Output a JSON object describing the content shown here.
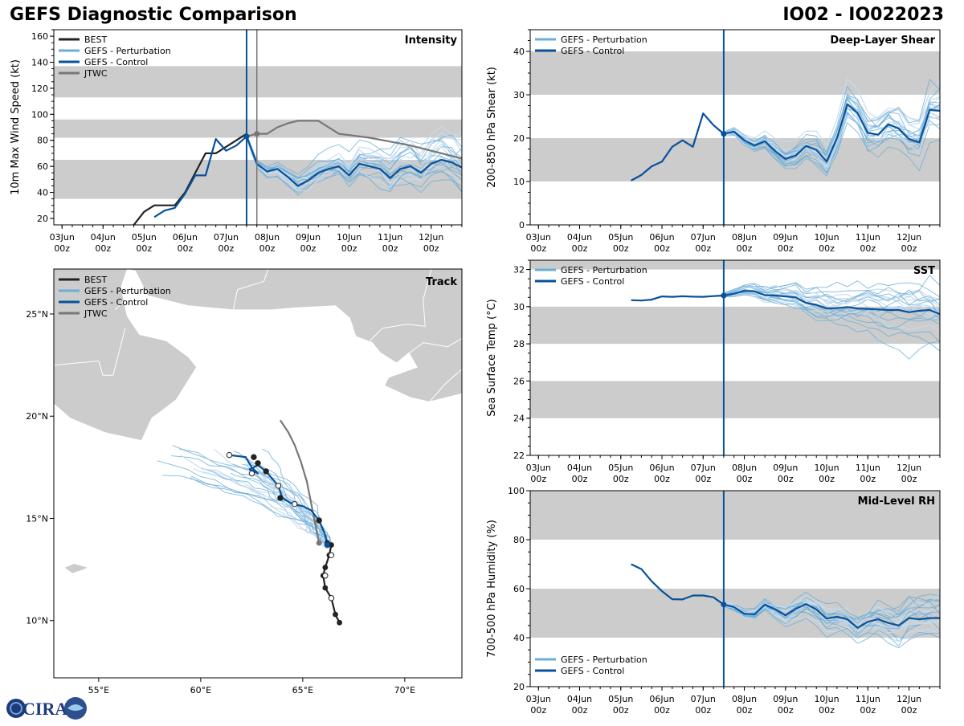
{
  "header": {
    "title_left": "GEFS Diagnostic Comparison",
    "title_right": "IO02 - IO022023"
  },
  "logo": {
    "text": "CIRA"
  },
  "colors": {
    "best": "#222222",
    "pert": "#6baed6",
    "pert_light": "#c6dbef",
    "control": "#08519c",
    "jtwc": "#777777",
    "band": "#cccccc",
    "land": "#cccccc"
  },
  "time_axis": {
    "labels": [
      [
        "03Jun",
        "00z"
      ],
      [
        "04Jun",
        "00z"
      ],
      [
        "05Jun",
        "00z"
      ],
      [
        "06Jun",
        "00z"
      ],
      [
        "07Jun",
        "00z"
      ],
      [
        "08Jun",
        "00z"
      ],
      [
        "09Jun",
        "00z"
      ],
      [
        "10Jun",
        "00z"
      ],
      [
        "11Jun",
        "00z"
      ],
      [
        "12Jun",
        "00z"
      ]
    ],
    "tick_days": [
      0,
      1,
      2,
      3,
      4,
      5,
      6,
      7,
      8,
      9
    ],
    "range": [
      -0.2,
      9.75
    ],
    "init_day": 4.5,
    "jtwc_day": 4.75
  },
  "chart_data": [
    {
      "id": "intensity",
      "type": "line",
      "title": "Intensity",
      "ylabel": "10m Max Wind Speed (kt)",
      "ylim": [
        15,
        165
      ],
      "yticks": [
        20,
        40,
        60,
        80,
        100,
        120,
        140,
        160
      ],
      "bands": [
        [
          35,
          65
        ],
        [
          82,
          96
        ],
        [
          113,
          137
        ]
      ],
      "legend": [
        "BEST",
        "GEFS - Perturbation",
        "GEFS - Control",
        "JTWC"
      ],
      "series": [
        {
          "name": "BEST",
          "x": [
            1.75,
            2.0,
            2.25,
            2.5,
            2.75,
            3.0,
            3.25,
            3.5,
            3.75,
            4.0,
            4.25,
            4.5
          ],
          "y": [
            15,
            25,
            30,
            30,
            30,
            40,
            55,
            70,
            70,
            75,
            80,
            85
          ]
        },
        {
          "name": "GEFS - Control",
          "x": [
            2.25,
            2.5,
            2.75,
            3.0,
            3.25,
            3.5,
            3.75,
            4.0,
            4.25,
            4.5,
            4.75,
            5.0,
            5.25,
            5.5,
            5.75,
            6.0,
            6.25,
            6.5,
            6.75,
            7.0,
            7.25,
            7.5,
            7.75,
            8.0,
            8.25,
            8.5,
            8.75,
            9.0,
            9.25,
            9.5,
            9.75
          ],
          "y": [
            21,
            26,
            28,
            39,
            53,
            53,
            81,
            72,
            76,
            83,
            62,
            56,
            58,
            52,
            45,
            49,
            55,
            58,
            60,
            53,
            62,
            60,
            58,
            51,
            58,
            60,
            55,
            62,
            65,
            63,
            59
          ]
        },
        {
          "name": "JTWC",
          "x": [
            4.5,
            4.75,
            5.0,
            5.25,
            5.5,
            5.75,
            6.0,
            6.25,
            6.5,
            6.75,
            7.0,
            7.5,
            8.0,
            8.5,
            9.0,
            9.5,
            9.75
          ],
          "y": [
            83,
            85,
            85,
            90,
            93,
            95,
            95,
            95,
            90,
            85,
            84,
            82,
            79,
            76,
            72,
            68,
            66
          ]
        }
      ]
    },
    {
      "id": "shear",
      "type": "line",
      "title": "Deep-Layer Shear",
      "ylabel": "200-850 hPa Shear (kt)",
      "ylim": [
        0,
        45
      ],
      "yticks": [
        0,
        10,
        20,
        30,
        40
      ],
      "bands": [
        [
          10,
          20
        ],
        [
          30,
          40
        ]
      ],
      "legend": [
        "GEFS - Perturbation",
        "GEFS - Control"
      ],
      "series": [
        {
          "name": "GEFS - Control",
          "x": [
            2.25,
            2.5,
            2.75,
            3.0,
            3.25,
            3.5,
            3.75,
            4.0,
            4.25,
            4.5,
            4.75,
            5.0,
            5.25,
            5.5,
            5.75,
            6.0,
            6.25,
            6.5,
            6.75,
            7.0,
            7.25,
            7.5,
            7.75,
            8.0,
            8.25,
            8.5,
            8.75,
            9.0,
            9.25,
            9.5,
            9.75
          ],
          "y": [
            10.2,
            11.5,
            13.5,
            14.6,
            18,
            19.5,
            18,
            25.7,
            23,
            21,
            21.5,
            19.5,
            18.3,
            19.3,
            17,
            15.2,
            16,
            18.2,
            17.3,
            14.6,
            20,
            27.8,
            25.8,
            21.2,
            20.8,
            23.2,
            22.2,
            19.8,
            19,
            26.5,
            26.3
          ]
        }
      ]
    },
    {
      "id": "sst",
      "type": "line",
      "title": "SST",
      "ylabel": "Sea Surface Temp (°C)",
      "ylim": [
        22,
        32.5
      ],
      "yticks": [
        22,
        24,
        26,
        28,
        30,
        32
      ],
      "bands": [
        [
          24,
          26
        ],
        [
          28,
          30
        ],
        [
          32,
          32.5
        ]
      ],
      "legend": [
        "GEFS - Perturbation",
        "GEFS - Control"
      ],
      "series": [
        {
          "name": "GEFS - Control",
          "x": [
            2.25,
            2.5,
            2.75,
            3.0,
            3.25,
            3.5,
            3.75,
            4.0,
            4.25,
            4.5,
            4.75,
            5.0,
            5.25,
            5.5,
            5.75,
            6.0,
            6.25,
            6.5,
            6.75,
            7.0,
            7.25,
            7.5,
            7.75,
            8.0,
            8.25,
            8.5,
            8.75,
            9.0,
            9.25,
            9.5,
            9.75
          ],
          "y": [
            30.35,
            30.33,
            30.38,
            30.55,
            30.53,
            30.56,
            30.54,
            30.53,
            30.57,
            30.6,
            30.7,
            30.85,
            30.82,
            30.62,
            30.6,
            30.55,
            30.5,
            30.2,
            30.1,
            29.9,
            29.92,
            29.98,
            29.9,
            29.88,
            29.85,
            29.82,
            29.82,
            29.7,
            29.78,
            29.82,
            29.6
          ]
        }
      ]
    },
    {
      "id": "rh",
      "type": "line",
      "title": "Mid-Level RH",
      "ylabel": "700-500 hPa Humidity (%)",
      "ylim": [
        20,
        100
      ],
      "yticks": [
        20,
        40,
        60,
        80,
        100
      ],
      "bands": [
        [
          40,
          60
        ],
        [
          80,
          100
        ]
      ],
      "legend": [
        "GEFS - Perturbation",
        "GEFS - Control"
      ],
      "series": [
        {
          "name": "GEFS - Control",
          "x": [
            2.25,
            2.5,
            2.75,
            3.0,
            3.25,
            3.5,
            3.75,
            4.0,
            4.25,
            4.5,
            4.75,
            5.0,
            5.25,
            5.5,
            5.75,
            6.0,
            6.25,
            6.5,
            6.75,
            7.0,
            7.25,
            7.5,
            7.75,
            8.0,
            8.25,
            8.5,
            8.75,
            9.0,
            9.25,
            9.5,
            9.75
          ],
          "y": [
            70,
            68,
            63,
            59,
            55.7,
            55.6,
            57.2,
            57.2,
            56.5,
            53.5,
            52.5,
            49.8,
            49.5,
            53.5,
            51.5,
            49.1,
            51.8,
            53.7,
            51.5,
            47.8,
            48.5,
            47.5,
            44,
            46.5,
            47.5,
            46,
            45,
            48,
            47.5,
            48,
            48
          ]
        }
      ]
    },
    {
      "id": "track",
      "type": "map",
      "title": "Track",
      "xlim": [
        52.8,
        72.8
      ],
      "ylim": [
        7.2,
        27.2
      ],
      "xticks": [
        [
          55,
          "55°E"
        ],
        [
          60,
          "60°E"
        ],
        [
          65,
          "65°E"
        ],
        [
          70,
          "70°E"
        ]
      ],
      "yticks": [
        [
          10,
          "10°N"
        ],
        [
          15,
          "15°N"
        ],
        [
          20,
          "20°N"
        ],
        [
          25,
          "25°N"
        ]
      ],
      "legend": [
        "BEST",
        "GEFS - Perturbation",
        "GEFS - Control",
        "JTWC"
      ],
      "best": {
        "lon": [
          66.8,
          66.6,
          66.4,
          66.1,
          66.0,
          66.1,
          66.3,
          66.4,
          66.2
        ],
        "lat": [
          9.9,
          10.3,
          11.1,
          11.6,
          12.2,
          12.6,
          13.2,
          13.7,
          13.8
        ]
      },
      "best_open": [
        [
          66.4,
          11.1
        ],
        [
          66.1,
          12.2
        ],
        [
          66.4,
          13.2
        ]
      ],
      "control": {
        "lon": [
          66.2,
          66.1,
          65.8,
          65.4,
          65.0,
          64.5,
          64.0,
          63.8,
          63.2,
          62.8,
          62.4,
          62.8,
          62.5,
          62.2,
          61.4
        ],
        "lat": [
          13.7,
          14.2,
          14.9,
          15.4,
          15.6,
          15.7,
          16.0,
          16.6,
          17.3,
          17.6,
          17.4,
          17.2,
          17.5,
          18.0,
          18.1
        ]
      },
      "control_dots": [
        [
          66.2,
          13.7
        ],
        [
          65.8,
          14.9
        ],
        [
          64.6,
          15.7
        ],
        [
          63.9,
          16.0
        ],
        [
          63.8,
          16.6
        ],
        [
          63.2,
          17.3
        ],
        [
          62.8,
          17.7
        ],
        [
          62.6,
          18.0
        ],
        [
          62.5,
          17.2
        ],
        [
          61.4,
          18.1
        ]
      ],
      "jtwc": {
        "lon": [
          65.8,
          65.6,
          65.4,
          65.2,
          64.9,
          64.6,
          64.3,
          63.9
        ],
        "lat": [
          13.8,
          14.8,
          15.8,
          16.8,
          17.8,
          18.6,
          19.2,
          19.8
        ]
      }
    }
  ]
}
